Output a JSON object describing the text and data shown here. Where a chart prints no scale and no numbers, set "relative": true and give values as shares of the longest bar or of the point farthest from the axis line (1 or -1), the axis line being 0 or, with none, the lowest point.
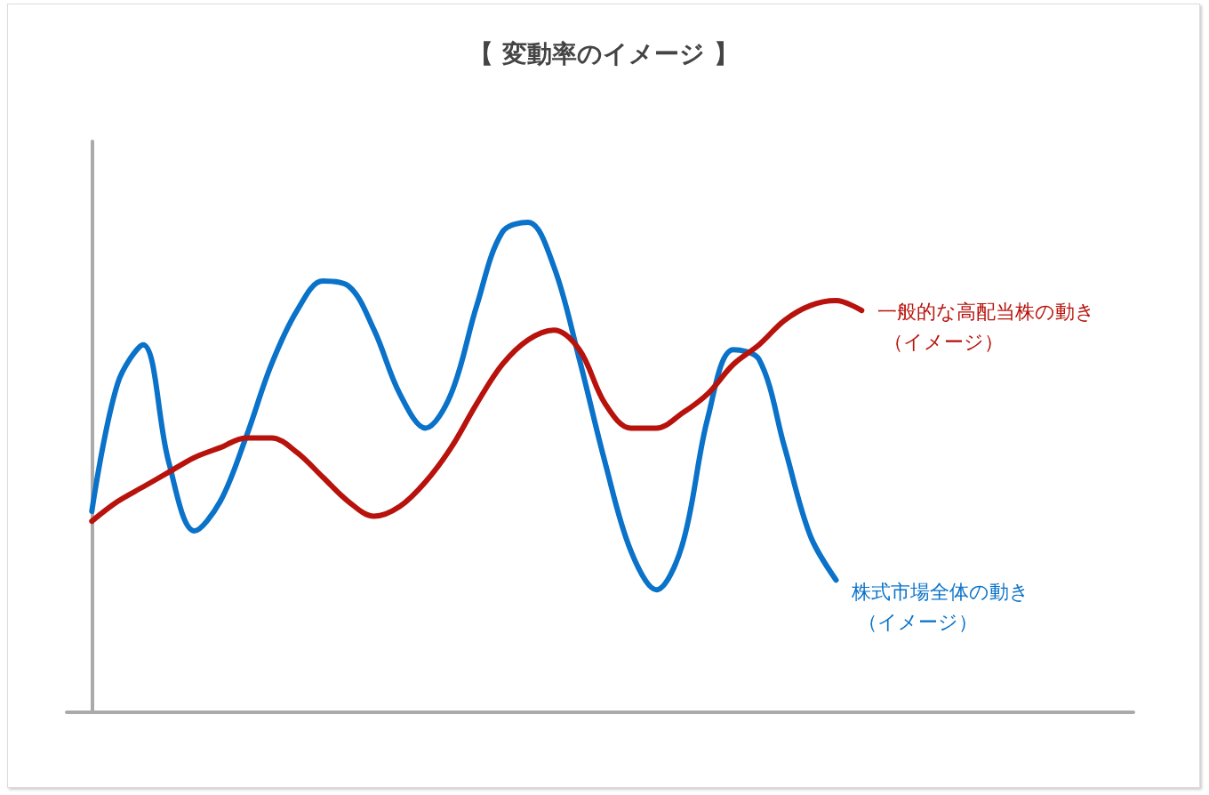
{
  "chart_data": {
    "type": "line",
    "title": "【 変動率のイメージ 】",
    "relative": true,
    "legend": false,
    "grid": false,
    "marker": "none",
    "line_style": "solid",
    "categories": [
      null,
      null,
      null,
      null,
      null,
      null,
      null,
      null,
      null,
      null,
      null,
      null,
      null,
      null,
      null,
      null,
      null,
      null,
      null,
      null,
      null,
      null,
      null,
      null,
      null,
      null,
      null,
      null,
      null,
      null,
      null
    ],
    "series": [
      {
        "name": "株式市場全体の動き（イメージ）",
        "color": "#0a72c9",
        "values": [
          0.41,
          0.67,
          0.75,
          0.51,
          0.37,
          0.43,
          0.56,
          0.71,
          0.82,
          0.88,
          0.87,
          0.78,
          0.65,
          0.58,
          0.65,
          0.83,
          0.98,
          1,
          0.91,
          0.72,
          0.51,
          0.33,
          0.25,
          0.34,
          0.6,
          0.74,
          0.72,
          0.54,
          0.36,
          0.27,
          null
        ]
      },
      {
        "name": "一般的な高配当株の動き（イメージ）",
        "color": "#b8120c",
        "values": [
          0.39,
          0.43,
          0.46,
          0.49,
          0.52,
          0.54,
          0.56,
          0.56,
          0.53,
          0.48,
          0.43,
          0.4,
          0.42,
          0.47,
          0.54,
          0.63,
          0.71,
          0.76,
          0.78,
          0.74,
          0.63,
          0.58,
          0.58,
          0.61,
          0.65,
          0.71,
          0.75,
          0.8,
          0.83,
          0.84,
          0.82
        ]
      }
    ]
  }
}
